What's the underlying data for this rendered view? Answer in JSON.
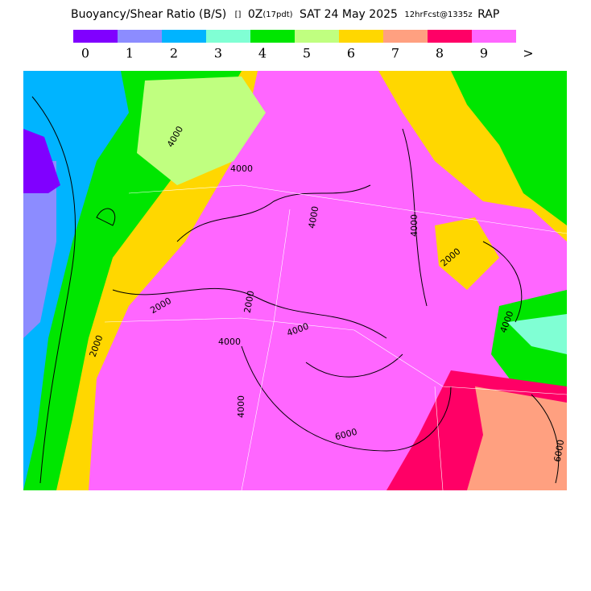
{
  "header": {
    "title": "Buoyancy/Shear Ratio (B/S)",
    "units": "[]",
    "valid_time": "0Z",
    "local_time": "(17pdt)",
    "date": "SAT 24 May 2025",
    "forecast": "12hrFcst@1335z",
    "model": "RAP"
  },
  "legend": {
    "colors": [
      "#8000ff",
      "#8c8cff",
      "#00b4ff",
      "#80ffd4",
      "#00e600",
      "#c0ff80",
      "#ffd700",
      "#ffa080",
      "#ff0066",
      "#ff66ff"
    ],
    "labels": [
      "0",
      "1",
      "2",
      "3",
      "4",
      "5",
      "6",
      "7",
      "8",
      "9",
      ">"
    ]
  },
  "map": {
    "contour_labels": [
      "4000",
      "4000",
      "2000",
      "4000",
      "2000",
      "4000",
      "4000",
      "2000",
      "4000",
      "6000",
      "4000",
      "6000",
      "4000",
      "2000"
    ]
  }
}
